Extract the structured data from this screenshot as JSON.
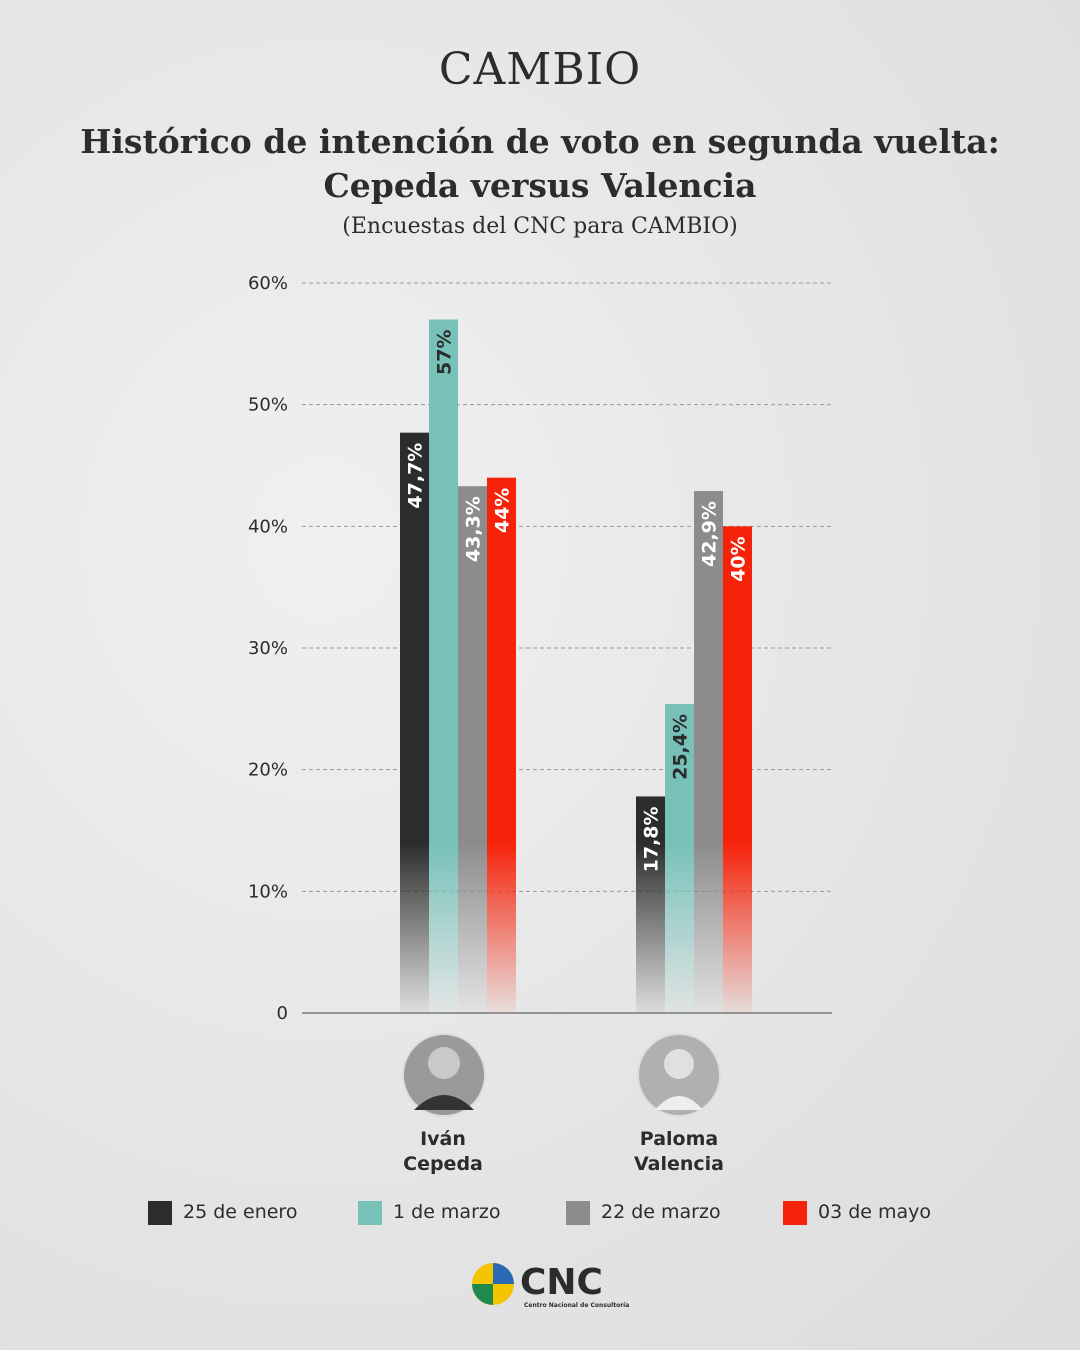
{
  "brand": "CAMBIO",
  "chart_data": {
    "type": "bar",
    "title": [
      "Histórico de intención de voto en segunda vuelta:",
      "Cepeda versus Valencia"
    ],
    "subtitle": "(Encuestas del CNC para CAMBIO)",
    "categories": [
      "Iván Cepeda",
      "Paloma Valencia"
    ],
    "series": [
      {
        "name": "25 de enero",
        "color": "#2b2d2c",
        "label_color": "#ffffff",
        "values": [
          47.7,
          17.8
        ],
        "value_labels": [
          "47,7%",
          "17,8%"
        ]
      },
      {
        "name": "1 de marzo",
        "color": "#77c1b9",
        "label_color": "#2b2d2c",
        "values": [
          57,
          25.4
        ],
        "value_labels": [
          "57%",
          "25,4%"
        ]
      },
      {
        "name": "22 de marzo",
        "color": "#8c8c8c",
        "label_color": "#ffffff",
        "values": [
          43.3,
          42.9
        ],
        "value_labels": [
          "43,3%",
          "42,9%"
        ]
      },
      {
        "name": "03 de mayo",
        "color": "#f5230a",
        "label_color": "#ffffff",
        "values": [
          44,
          40
        ],
        "value_labels": [
          "44%",
          "40%"
        ]
      }
    ],
    "ylim": [
      0,
      60
    ],
    "yticks": [
      0,
      {
        "value": 10,
        "label": "10%"
      },
      {
        "value": 20,
        "label": "20%"
      },
      {
        "value": 30,
        "label": "30%"
      },
      {
        "value": 40,
        "label": "40%"
      },
      {
        "value": 50,
        "label": "50%"
      },
      {
        "value": 60,
        "label": "60%"
      }
    ],
    "grid": true
  },
  "footer": {
    "logo": "CNC",
    "logo_caption": "Centro Nacional de Consultoría"
  }
}
